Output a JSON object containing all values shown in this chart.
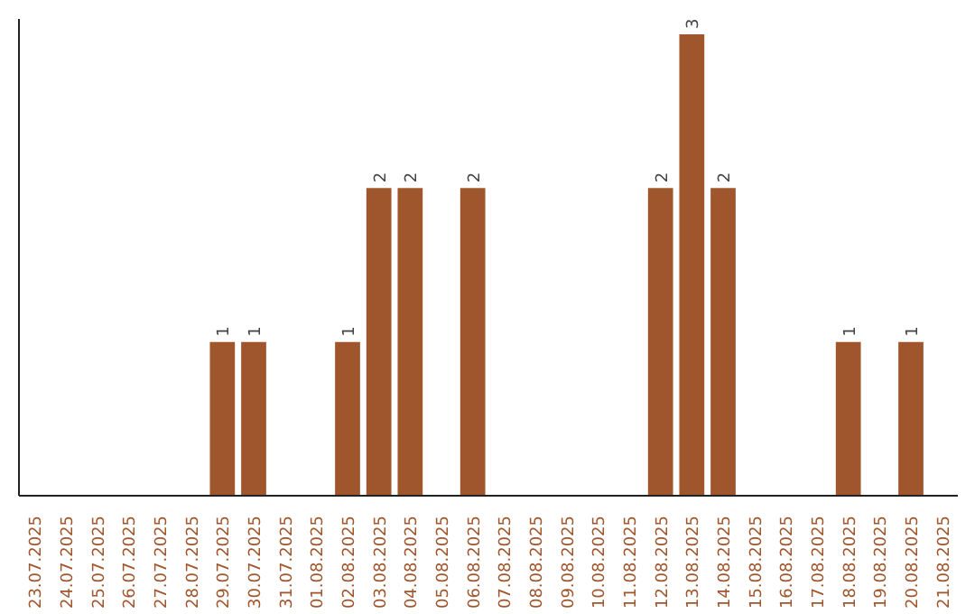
{
  "chart_data": {
    "type": "bar",
    "categories": [
      "23.07.2025",
      "24.07.2025",
      "25.07.2025",
      "26.07.2025",
      "27.07.2025",
      "28.07.2025",
      "29.07.2025",
      "30.07.2025",
      "31.07.2025",
      "01.08.2025",
      "02.08.2025",
      "03.08.2025",
      "04.08.2025",
      "05.08.2025",
      "06.08.2025",
      "07.08.2025",
      "08.08.2025",
      "09.08.2025",
      "10.08.2025",
      "11.08.2025",
      "12.08.2025",
      "13.08.2025",
      "14.08.2025",
      "15.08.2025",
      "16.08.2025",
      "17.08.2025",
      "18.08.2025",
      "19.08.2025",
      "20.08.2025",
      "21.08.2025"
    ],
    "values": [
      0,
      0,
      0,
      0,
      0,
      0,
      1,
      1,
      0,
      0,
      1,
      2,
      2,
      0,
      2,
      0,
      0,
      0,
      0,
      0,
      2,
      3,
      2,
      0,
      0,
      0,
      1,
      0,
      1,
      0
    ],
    "value_labels": [
      null,
      null,
      null,
      null,
      null,
      null,
      "1",
      "1",
      null,
      null,
      "1",
      "2",
      "2",
      null,
      "2",
      null,
      null,
      null,
      null,
      null,
      "2",
      "3",
      "2",
      null,
      null,
      null,
      "1",
      null,
      "1",
      null
    ],
    "color": "#a0562c",
    "ylim": [
      0,
      3.1
    ],
    "tick_labels": "x",
    "grid": false
  }
}
